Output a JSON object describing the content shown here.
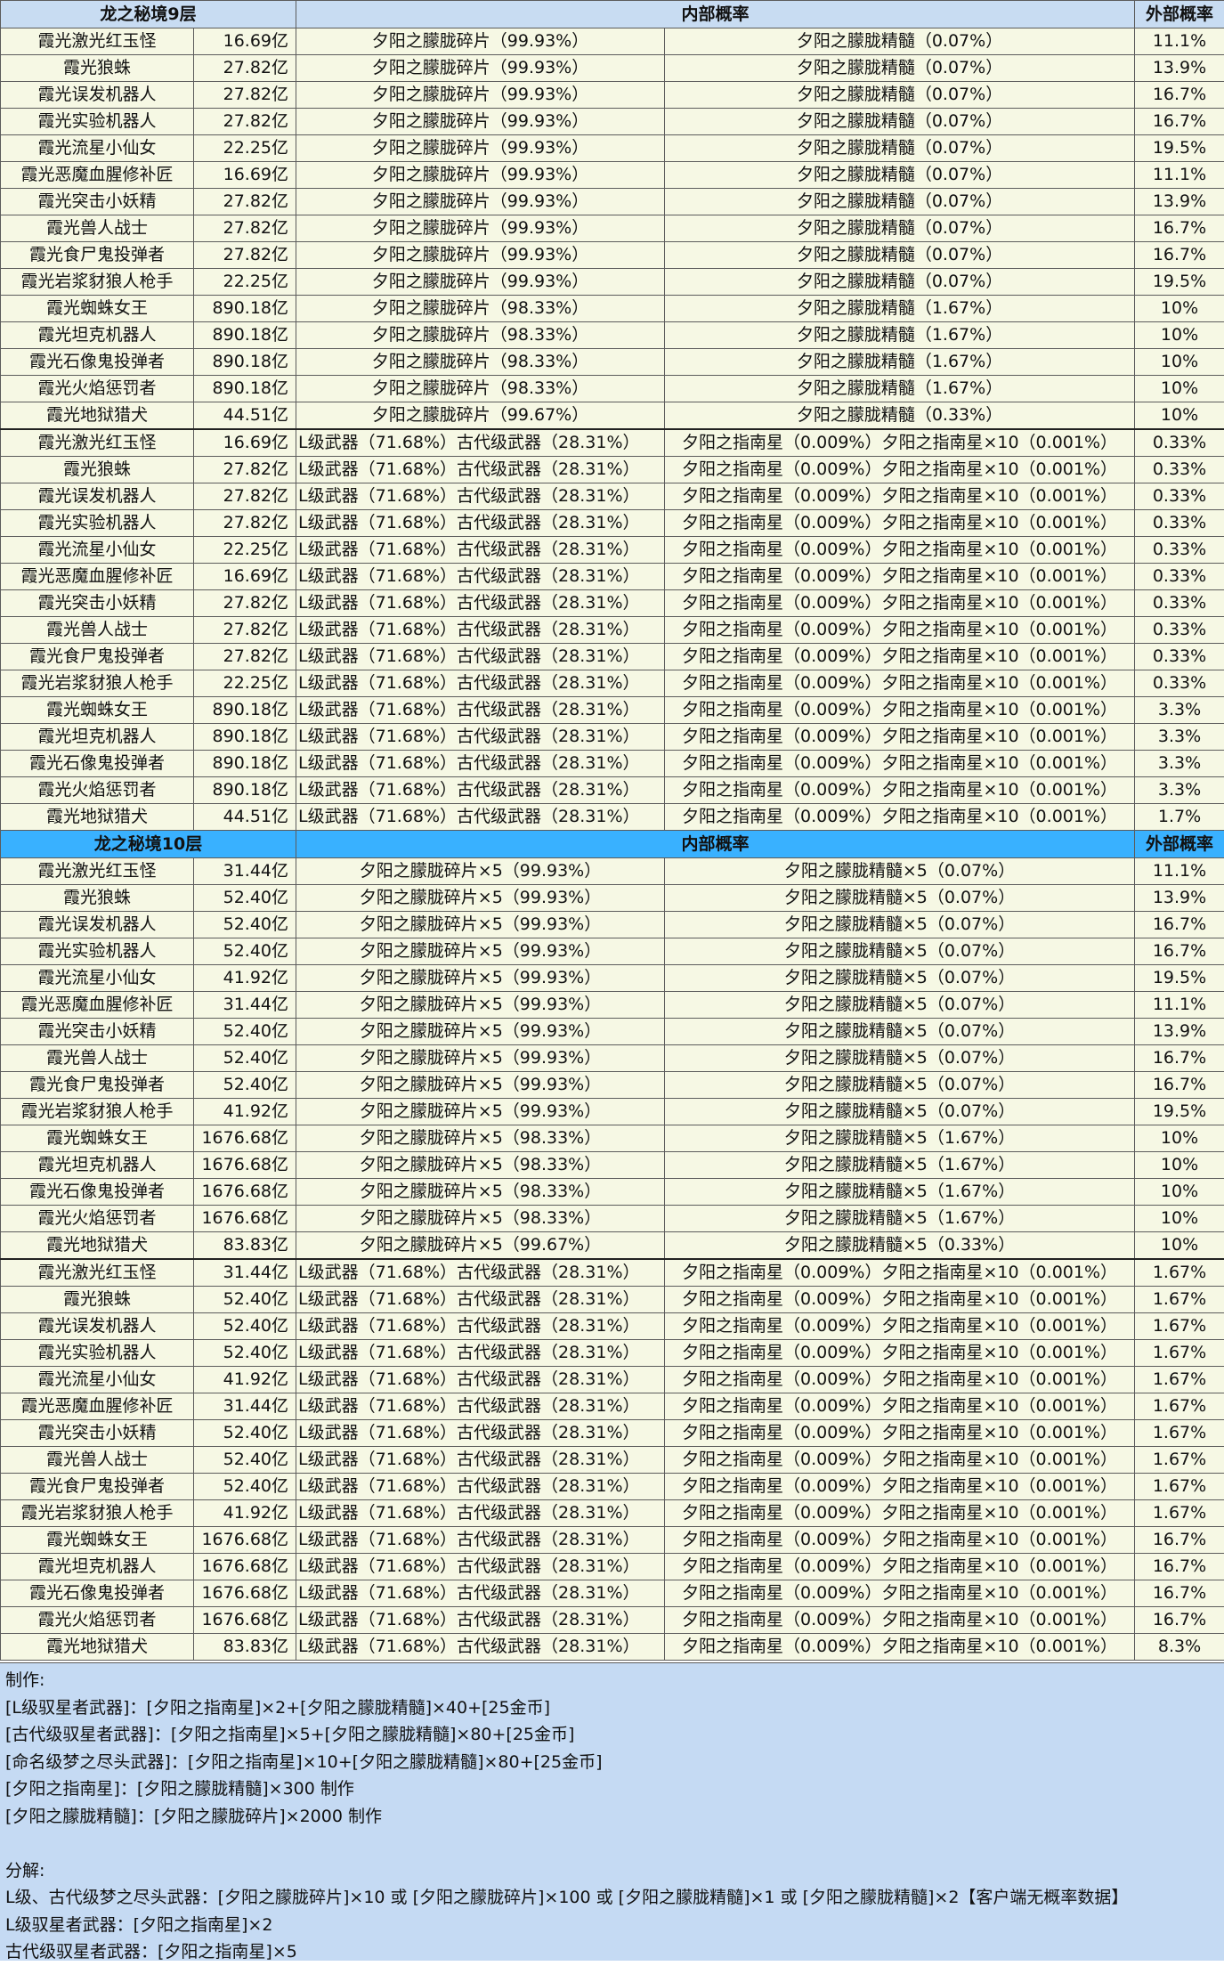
{
  "headers": {
    "in": "内部概率",
    "out": "外部概率"
  },
  "sections": [
    {
      "title": "龙之秘境9层",
      "monsters": [
        "霞光激光红玉怪",
        "霞光狼蛛",
        "霞光误发机器人",
        "霞光实验机器人",
        "霞光流星小仙女",
        "霞光恶魔血腥修补匠",
        "霞光突击小妖精",
        "霞光兽人战士",
        "霞光食尸鬼投弹者",
        "霞光岩浆豺狼人枪手",
        "霞光蜘蛛女王",
        "霞光坦克机器人",
        "霞光石像鬼投弹者",
        "霞光火焰惩罚者",
        "霞光地狱猎犬"
      ],
      "amounts": [
        "16.69亿",
        "27.82亿",
        "27.82亿",
        "27.82亿",
        "22.25亿",
        "16.69亿",
        "27.82亿",
        "27.82亿",
        "27.82亿",
        "22.25亿",
        "890.18亿",
        "890.18亿",
        "890.18亿",
        "890.18亿",
        "44.51亿"
      ],
      "mat_a": [
        "夕阳之朦胧碎片（99.93%）",
        "夕阳之朦胧碎片（99.93%）",
        "夕阳之朦胧碎片（99.93%）",
        "夕阳之朦胧碎片（99.93%）",
        "夕阳之朦胧碎片（99.93%）",
        "夕阳之朦胧碎片（99.93%）",
        "夕阳之朦胧碎片（99.93%）",
        "夕阳之朦胧碎片（99.93%）",
        "夕阳之朦胧碎片（99.93%）",
        "夕阳之朦胧碎片（99.93%）",
        "夕阳之朦胧碎片（98.33%）",
        "夕阳之朦胧碎片（98.33%）",
        "夕阳之朦胧碎片（98.33%）",
        "夕阳之朦胧碎片（98.33%）",
        "夕阳之朦胧碎片（99.67%）"
      ],
      "mat_b": [
        "夕阳之朦胧精髓（0.07%）",
        "夕阳之朦胧精髓（0.07%）",
        "夕阳之朦胧精髓（0.07%）",
        "夕阳之朦胧精髓（0.07%）",
        "夕阳之朦胧精髓（0.07%）",
        "夕阳之朦胧精髓（0.07%）",
        "夕阳之朦胧精髓（0.07%）",
        "夕阳之朦胧精髓（0.07%）",
        "夕阳之朦胧精髓（0.07%）",
        "夕阳之朦胧精髓（0.07%）",
        "夕阳之朦胧精髓（1.67%）",
        "夕阳之朦胧精髓（1.67%）",
        "夕阳之朦胧精髓（1.67%）",
        "夕阳之朦胧精髓（1.67%）",
        "夕阳之朦胧精髓（0.33%）"
      ],
      "mat_out": [
        "11.1%",
        "13.9%",
        "16.7%",
        "16.7%",
        "19.5%",
        "11.1%",
        "13.9%",
        "16.7%",
        "16.7%",
        "19.5%",
        "10%",
        "10%",
        "10%",
        "10%",
        "10%"
      ],
      "wep_out": [
        "0.33%",
        "0.33%",
        "0.33%",
        "0.33%",
        "0.33%",
        "0.33%",
        "0.33%",
        "0.33%",
        "0.33%",
        "0.33%",
        "3.3%",
        "3.3%",
        "3.3%",
        "3.3%",
        "1.7%"
      ]
    },
    {
      "title": "龙之秘境10层",
      "monsters": [
        "霞光激光红玉怪",
        "霞光狼蛛",
        "霞光误发机器人",
        "霞光实验机器人",
        "霞光流星小仙女",
        "霞光恶魔血腥修补匠",
        "霞光突击小妖精",
        "霞光兽人战士",
        "霞光食尸鬼投弹者",
        "霞光岩浆豺狼人枪手",
        "霞光蜘蛛女王",
        "霞光坦克机器人",
        "霞光石像鬼投弹者",
        "霞光火焰惩罚者",
        "霞光地狱猎犬"
      ],
      "amounts": [
        "31.44亿",
        "52.40亿",
        "52.40亿",
        "52.40亿",
        "41.92亿",
        "31.44亿",
        "52.40亿",
        "52.40亿",
        "52.40亿",
        "41.92亿",
        "1676.68亿",
        "1676.68亿",
        "1676.68亿",
        "1676.68亿",
        "83.83亿"
      ],
      "mat_a": [
        "夕阳之朦胧碎片×5（99.93%）",
        "夕阳之朦胧碎片×5（99.93%）",
        "夕阳之朦胧碎片×5（99.93%）",
        "夕阳之朦胧碎片×5（99.93%）",
        "夕阳之朦胧碎片×5（99.93%）",
        "夕阳之朦胧碎片×5（99.93%）",
        "夕阳之朦胧碎片×5（99.93%）",
        "夕阳之朦胧碎片×5（99.93%）",
        "夕阳之朦胧碎片×5（99.93%）",
        "夕阳之朦胧碎片×5（99.93%）",
        "夕阳之朦胧碎片×5（98.33%）",
        "夕阳之朦胧碎片×5（98.33%）",
        "夕阳之朦胧碎片×5（98.33%）",
        "夕阳之朦胧碎片×5（98.33%）",
        "夕阳之朦胧碎片×5（99.67%）"
      ],
      "mat_b": [
        "夕阳之朦胧精髓×5（0.07%）",
        "夕阳之朦胧精髓×5（0.07%）",
        "夕阳之朦胧精髓×5（0.07%）",
        "夕阳之朦胧精髓×5（0.07%）",
        "夕阳之朦胧精髓×5（0.07%）",
        "夕阳之朦胧精髓×5（0.07%）",
        "夕阳之朦胧精髓×5（0.07%）",
        "夕阳之朦胧精髓×5（0.07%）",
        "夕阳之朦胧精髓×5（0.07%）",
        "夕阳之朦胧精髓×5（0.07%）",
        "夕阳之朦胧精髓×5（1.67%）",
        "夕阳之朦胧精髓×5（1.67%）",
        "夕阳之朦胧精髓×5（1.67%）",
        "夕阳之朦胧精髓×5（1.67%）",
        "夕阳之朦胧精髓×5（0.33%）"
      ],
      "mat_out": [
        "11.1%",
        "13.9%",
        "16.7%",
        "16.7%",
        "19.5%",
        "11.1%",
        "13.9%",
        "16.7%",
        "16.7%",
        "19.5%",
        "10%",
        "10%",
        "10%",
        "10%",
        "10%"
      ],
      "wep_out": [
        "1.67%",
        "1.67%",
        "1.67%",
        "1.67%",
        "1.67%",
        "1.67%",
        "1.67%",
        "1.67%",
        "1.67%",
        "1.67%",
        "16.7%",
        "16.7%",
        "16.7%",
        "16.7%",
        "8.3%"
      ]
    }
  ],
  "weapon_drop": {
    "left": "L级武器（71.68%）古代级武器（28.31%）",
    "right": "夕阳之指南星（0.009%）夕阳之指南星×10（0.001%）"
  },
  "notes": [
    "制作:",
    "[L级驭星者武器]：[夕阳之指南星]×2+[夕阳之朦胧精髓]×40+[25金币]",
    "[古代级驭星者武器]：[夕阳之指南星]×5+[夕阳之朦胧精髓]×80+[25金币]",
    "[命名级梦之尽头武器]：[夕阳之指南星]×10+[夕阳之朦胧精髓]×80+[25金币]",
    "[夕阳之指南星]：[夕阳之朦胧精髓]×300 制作",
    "[夕阳之朦胧精髓]：[夕阳之朦胧碎片]×2000 制作",
    "",
    "分解:",
    "L级、古代级梦之尽头武器：[夕阳之朦胧碎片]×10 或 [夕阳之朦胧碎片]×100 或 [夕阳之朦胧精髓]×1 或 [夕阳之朦胧精髓]×2【客户端无概率数据】",
    "L级驭星者武器：[夕阳之指南星]×2",
    "古代级驭星者武器：[夕阳之指南星]×5"
  ]
}
